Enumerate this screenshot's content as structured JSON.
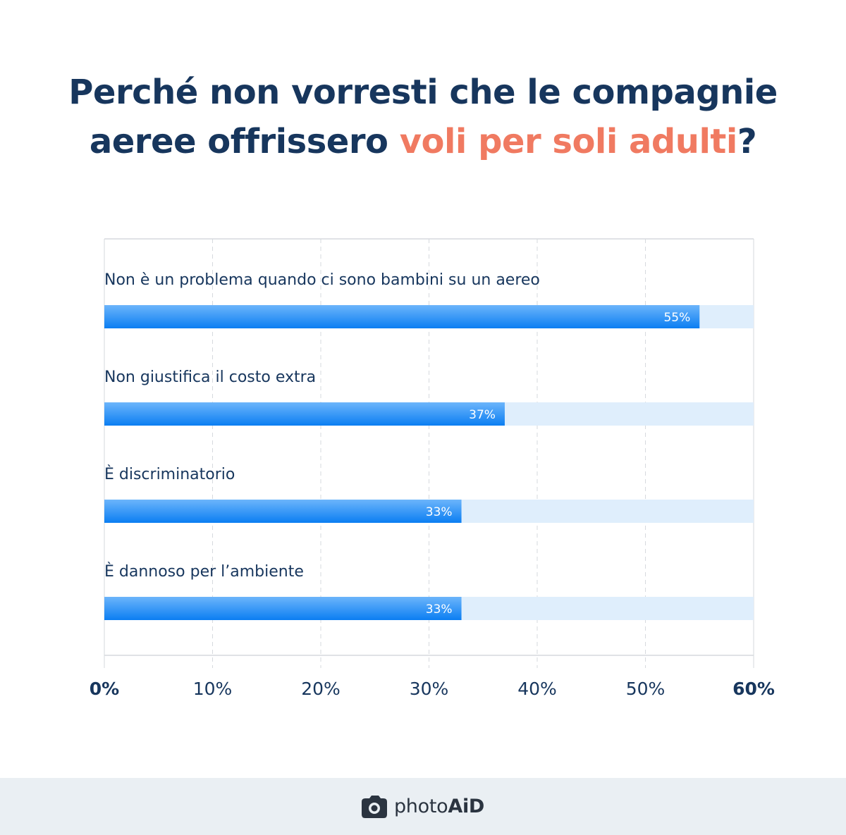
{
  "title": {
    "line1": "Perché non vorresti che le compagnie",
    "line2_prefix": "aeree offrissero ",
    "line2_highlight": "voli per soli adulti",
    "line2_suffix": "?"
  },
  "colors": {
    "title": "#17365d",
    "highlight": "#f07a61",
    "bar_top": "#6cb5fb",
    "bar_bottom": "#0b7ef2",
    "track": "#dfeefc",
    "grid": "#d6d9de",
    "axis_text": "#17365d"
  },
  "chart_data": {
    "type": "bar",
    "orientation": "horizontal",
    "categories": [
      "Non è un problema quando ci sono bambini su un aereo",
      "Non giustifica il costo extra",
      "È discriminatorio",
      "È dannoso per l’ambiente"
    ],
    "values": [
      55,
      37,
      33,
      33
    ],
    "value_labels": [
      "55%",
      "37%",
      "33%",
      "33%"
    ],
    "xlim": [
      0,
      60
    ],
    "x_ticks": [
      "0%",
      "10%",
      "20%",
      "30%",
      "40%",
      "50%",
      "60%"
    ],
    "grid": true
  },
  "footer": {
    "brand_light": "photo",
    "brand_bold": "AiD",
    "logo_icon": "camera-icon"
  }
}
